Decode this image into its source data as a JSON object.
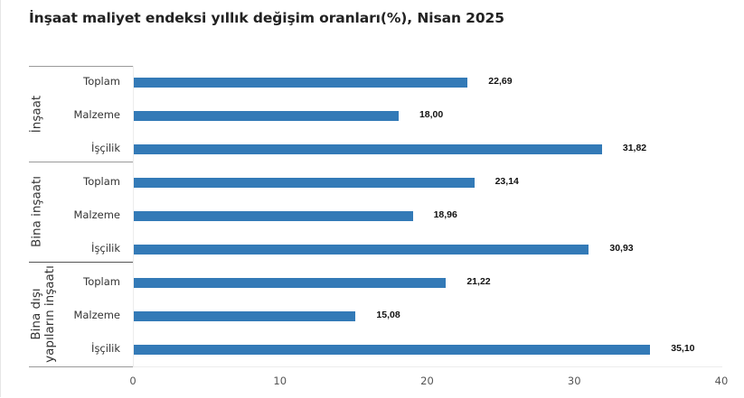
{
  "title": "İnşaat maliyet endeksi yıllık değişim oranları(%), Nisan 2025",
  "colors": {
    "bar": "#337ab7",
    "title": "#222222",
    "axis": "#ececec"
  },
  "axis": {
    "x_ticks": [
      "0",
      "10",
      "20",
      "30",
      "40"
    ],
    "x_min": 0,
    "x_max": 40
  },
  "groups": [
    {
      "label": "İnşaat",
      "label_lines": [
        "İnşaat"
      ],
      "categories": [
        {
          "label": "Toplam",
          "value": 22.69,
          "display": "22,69"
        },
        {
          "label": "Malzeme",
          "value": 18.0,
          "display": "18,00"
        },
        {
          "label": "İşçilik",
          "value": 31.82,
          "display": "31,82"
        }
      ]
    },
    {
      "label": "Bina inşaatı",
      "label_lines": [
        "Bina inşaatı"
      ],
      "categories": [
        {
          "label": "Toplam",
          "value": 23.14,
          "display": "23,14"
        },
        {
          "label": "Malzeme",
          "value": 18.96,
          "display": "18,96"
        },
        {
          "label": "İşçilik",
          "value": 30.93,
          "display": "30,93"
        }
      ]
    },
    {
      "label": "Bina dışı yapıların inşaatı",
      "label_lines": [
        "Bina dışı",
        "yapıların inşaatı"
      ],
      "categories": [
        {
          "label": "Toplam",
          "value": 21.22,
          "display": "21,22"
        },
        {
          "label": "Malzeme",
          "value": 15.08,
          "display": "15,08"
        },
        {
          "label": "İşçilik",
          "value": 35.1,
          "display": "35,10"
        }
      ]
    }
  ],
  "chart_data": {
    "type": "bar",
    "orientation": "horizontal",
    "title": "İnşaat maliyet endeksi yıllık değişim oranları(%), Nisan 2025",
    "xlabel": "",
    "ylabel": "",
    "xlim": [
      0,
      40
    ],
    "x_ticks": [
      0,
      10,
      20,
      30,
      40
    ],
    "grid": false,
    "legend": null,
    "categories": [
      "İnşaat - Toplam",
      "İnşaat - Malzeme",
      "İnşaat - İşçilik",
      "Bina inşaatı - Toplam",
      "Bina inşaatı - Malzeme",
      "Bina inşaatı - İşçilik",
      "Bina dışı yapıların inşaatı - Toplam",
      "Bina dışı yapıların inşaatı - Malzeme",
      "Bina dışı yapıların inşaatı - İşçilik"
    ],
    "values": [
      22.69,
      18.0,
      31.82,
      23.14,
      18.96,
      30.93,
      21.22,
      15.08,
      35.1
    ],
    "data_labels": [
      "22,69",
      "18,00",
      "31,82",
      "23,14",
      "18,96",
      "30,93",
      "21,22",
      "15,08",
      "35,10"
    ],
    "groups": [
      "İnşaat",
      "Bina inşaatı",
      "Bina dışı yapıların inşaatı"
    ]
  }
}
